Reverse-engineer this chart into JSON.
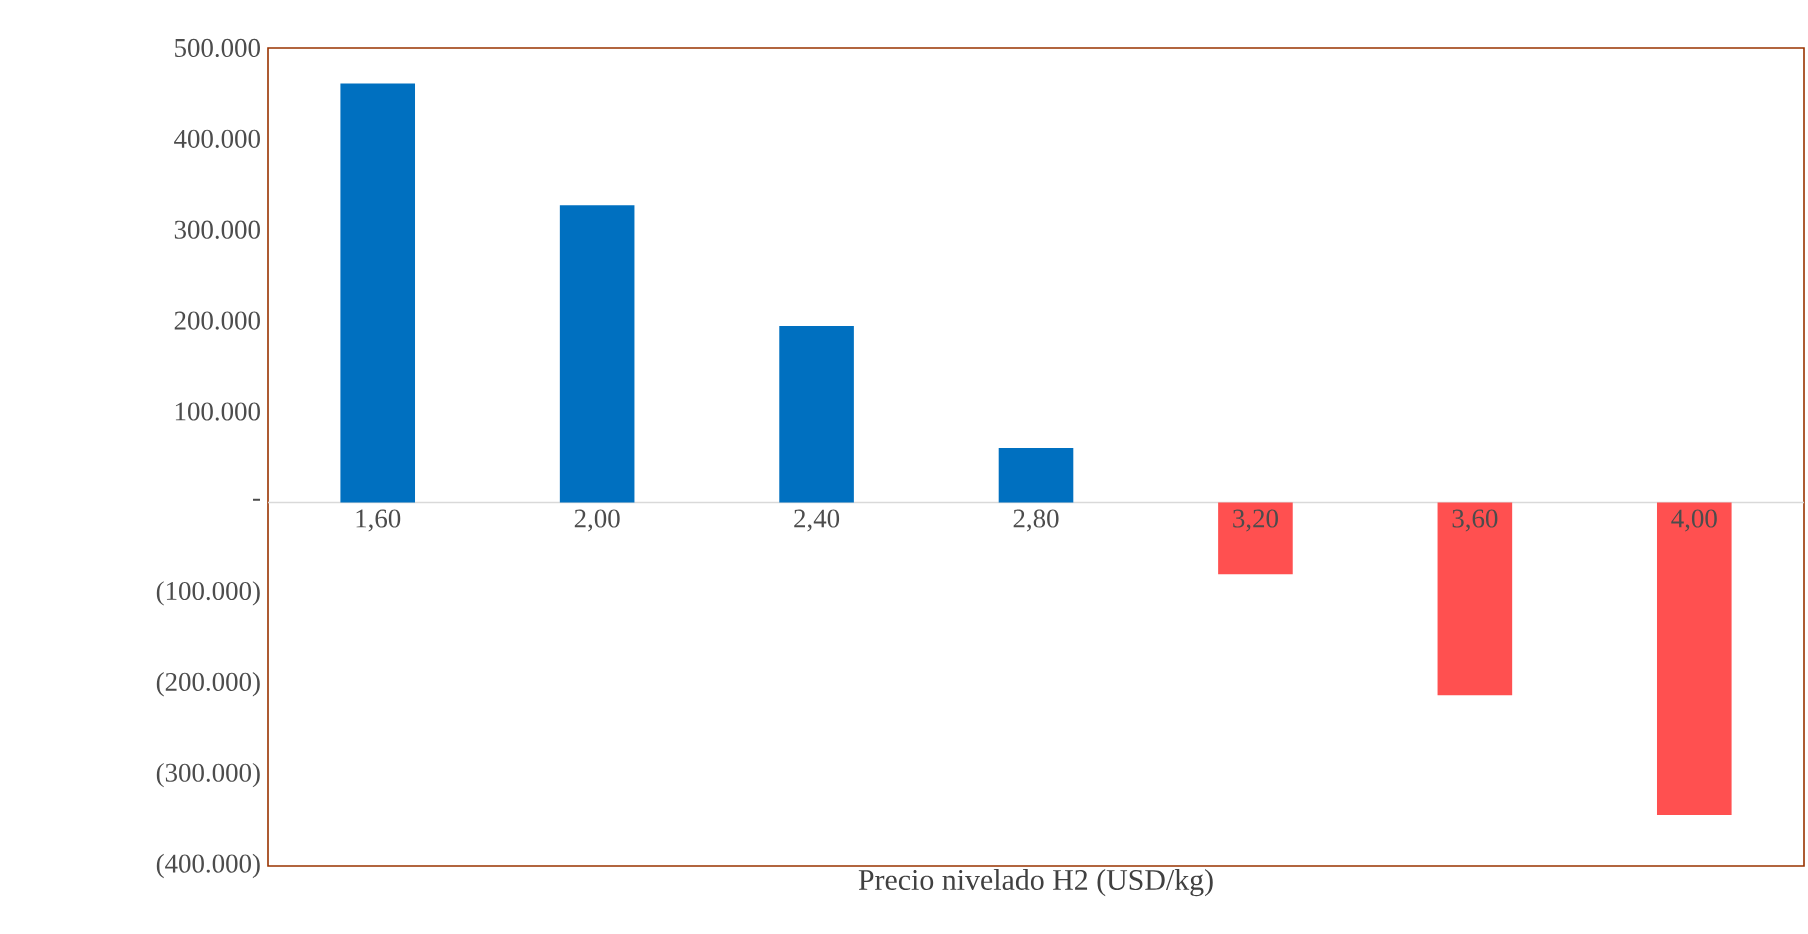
{
  "chart_data": {
    "type": "bar",
    "xlabel": "Precio nivelado H2 (USD/kg)",
    "categories": [
      "1,60",
      "2,00",
      "2,40",
      "2,80",
      "3,20",
      "3,60",
      "4,00"
    ],
    "values": [
      461000,
      327000,
      194000,
      60000,
      -79000,
      -212000,
      -344000
    ],
    "colors": [
      "#0070c0",
      "#0070c0",
      "#0070c0",
      "#0070c0",
      "#ff5050",
      "#ff5050",
      "#ff5050"
    ],
    "ylim": [
      -400000,
      500000
    ],
    "yticks": [
      {
        "value": -400000,
        "label": "(400.000)"
      },
      {
        "value": -300000,
        "label": "(300.000)"
      },
      {
        "value": -200000,
        "label": "(200.000)"
      },
      {
        "value": -100000,
        "label": "(100.000)"
      },
      {
        "value": 0,
        "label": "-"
      },
      {
        "value": 100000,
        "label": "100.000"
      },
      {
        "value": 200000,
        "label": "200.000"
      },
      {
        "value": 300000,
        "label": "300.000"
      },
      {
        "value": 400000,
        "label": "400.000"
      },
      {
        "value": 500000,
        "label": "500.000"
      }
    ],
    "grid": false
  }
}
